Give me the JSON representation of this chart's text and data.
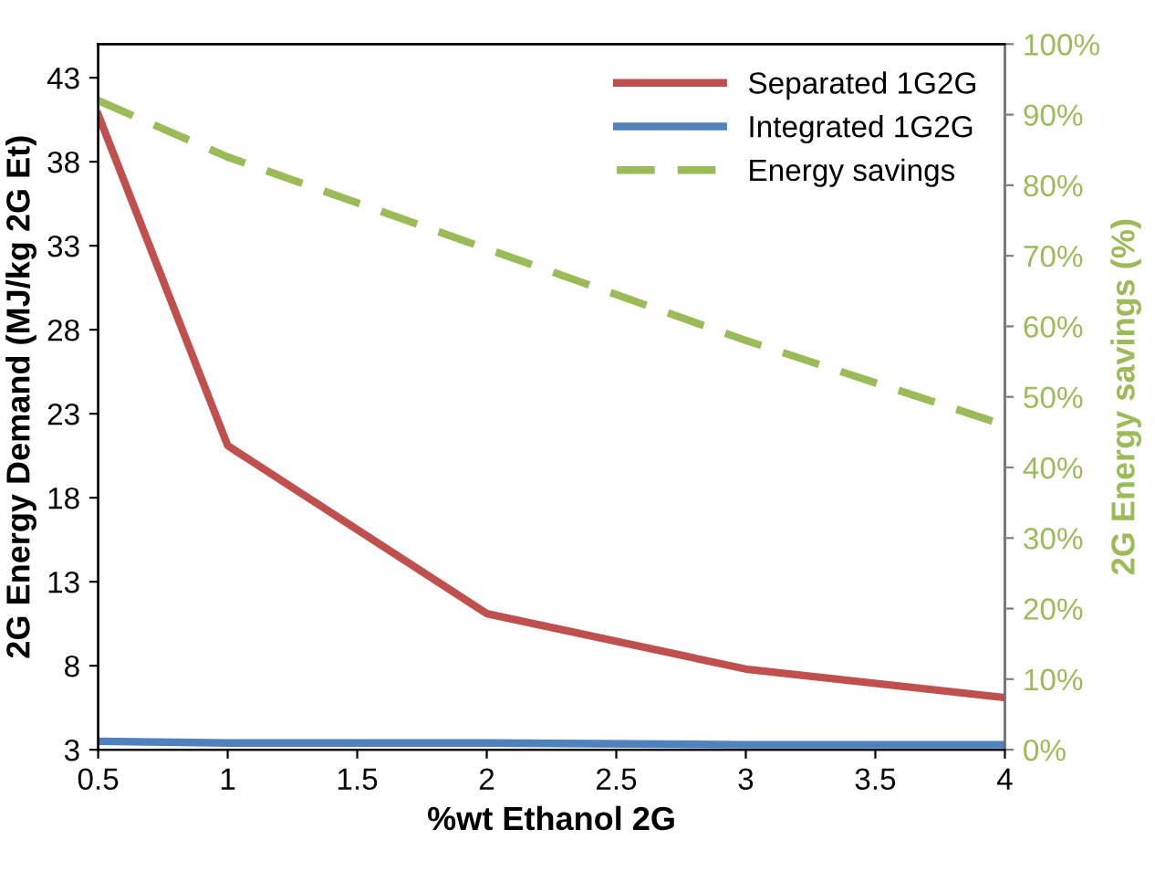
{
  "chart_data": {
    "type": "line",
    "xlabel": "%wt Ethanol 2G",
    "ylabel": "2G Energy Demand (MJ/kg 2G Et)",
    "y2label": "2G Energy savings (%)",
    "x": [
      0.5,
      1,
      2,
      3,
      4
    ],
    "series": [
      {
        "name": "Separated 1G2G",
        "color": "#c0504d",
        "values": [
          40.8,
          21.1,
          11.1,
          7.8,
          6.1
        ],
        "line_style": "solid"
      },
      {
        "name": "Integrated 1G2G",
        "color": "#4f81bd",
        "values": [
          3.5,
          3.4,
          3.4,
          3.3,
          3.3
        ],
        "line_style": "solid"
      },
      {
        "name": "Energy savings",
        "color": "#9bbb59",
        "values": [
          92,
          84,
          71,
          58,
          46
        ],
        "axis": "y2",
        "line_style": "dashed"
      }
    ],
    "xlim": [
      0.5,
      4
    ],
    "xticks": [
      0.5,
      1,
      1.5,
      2,
      2.5,
      3,
      3.5,
      4
    ],
    "ylim": [
      3,
      45
    ],
    "yticks": [
      3,
      8,
      13,
      18,
      23,
      28,
      33,
      38,
      43
    ],
    "y2lim": [
      0,
      100
    ],
    "y2ticks": [
      {
        "value": 0,
        "label": "0%"
      },
      {
        "value": 10,
        "label": "10%"
      },
      {
        "value": 20,
        "label": "20%"
      },
      {
        "value": 30,
        "label": "30%"
      },
      {
        "value": 40,
        "label": "40%"
      },
      {
        "value": 50,
        "label": "50%"
      },
      {
        "value": 60,
        "label": "60%"
      },
      {
        "value": 70,
        "label": "70%"
      },
      {
        "value": 80,
        "label": "80%"
      },
      {
        "value": 90,
        "label": "90%"
      },
      {
        "value": 100,
        "label": "100%"
      }
    ],
    "grid": false,
    "legend": "top right",
    "marker": "none"
  }
}
